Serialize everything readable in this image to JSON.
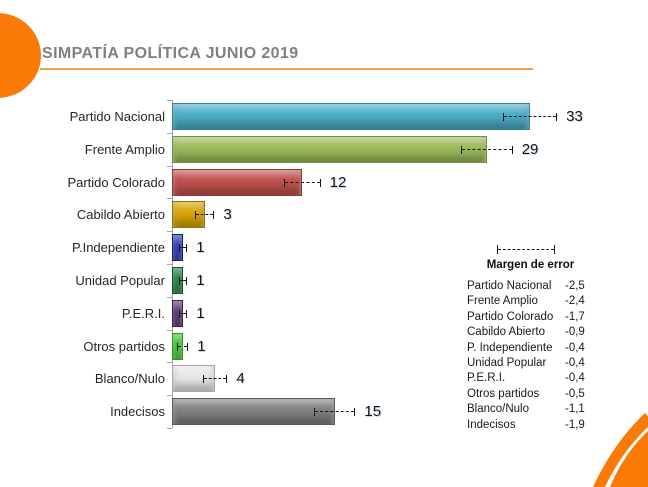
{
  "title": "SIMPATÍA POLÍTICA JUNIO 2019",
  "colors": {
    "accent_orange": "#F97A06",
    "title_gray": "#808080",
    "title_rule_orange": "#F0A254",
    "axis_gray": "#A6A6A6"
  },
  "chart_data": {
    "type": "bar",
    "orientation": "horizontal",
    "title": "SIMPATÍA POLÍTICA JUNIO 2019",
    "xlabel": "",
    "ylabel": "",
    "xlim": [
      0,
      40
    ],
    "grid": false,
    "categories": [
      "Partido Nacional",
      "Frente Amplio",
      "Partido Colorado",
      "Cabildo Abierto",
      "P.Independiente",
      "Unidad Popular",
      "P.E.R.I.",
      "Otros partidos",
      "Blanco/Nulo",
      "Indecisos"
    ],
    "values": [
      33,
      29,
      12,
      3,
      1,
      1,
      1,
      1,
      4,
      15
    ],
    "value_labels": [
      "33",
      "29",
      "12",
      "3",
      "1",
      "1",
      "1",
      "1",
      "4",
      "15"
    ],
    "error_margins": [
      2.5,
      2.4,
      1.7,
      0.9,
      0.4,
      0.4,
      0.4,
      0.5,
      1.1,
      1.9
    ],
    "bar_colors": [
      "#4BACC6",
      "#9BBB59",
      "#C0504D",
      "#D7A500",
      "#2433B5",
      "#1E8040",
      "#563077",
      "#3FCC33",
      "#E8E8E8",
      "#808080"
    ],
    "bar_border_colors": [
      "#31859B",
      "#76923C",
      "#943634",
      "#97740A",
      "#141F73",
      "#14522A",
      "#3A1F52",
      "#2E9424",
      "#A6A6A6",
      "#595959"
    ],
    "legend": {
      "position": "right",
      "title": "Margen de error",
      "entries": [
        {
          "label": "Partido Nacional",
          "value": "-2,5"
        },
        {
          "label": "Frente Amplio",
          "value": "-2,4"
        },
        {
          "label": "Partido Colorado",
          "value": "-1,7"
        },
        {
          "label": "Cabildo Abierto",
          "value": "-0,9"
        },
        {
          "label": "P. Independiente",
          "value": "-0,4"
        },
        {
          "label": "Unidad Popular",
          "value": "-0,4"
        },
        {
          "label": "P.E.R.I.",
          "value": "-0,4"
        },
        {
          "label": "Otros partidos",
          "value": "-0,5"
        },
        {
          "label": "Blanco/Nulo",
          "value": "-1,1"
        },
        {
          "label": "Indecisos",
          "value": "-1,9"
        }
      ]
    }
  }
}
